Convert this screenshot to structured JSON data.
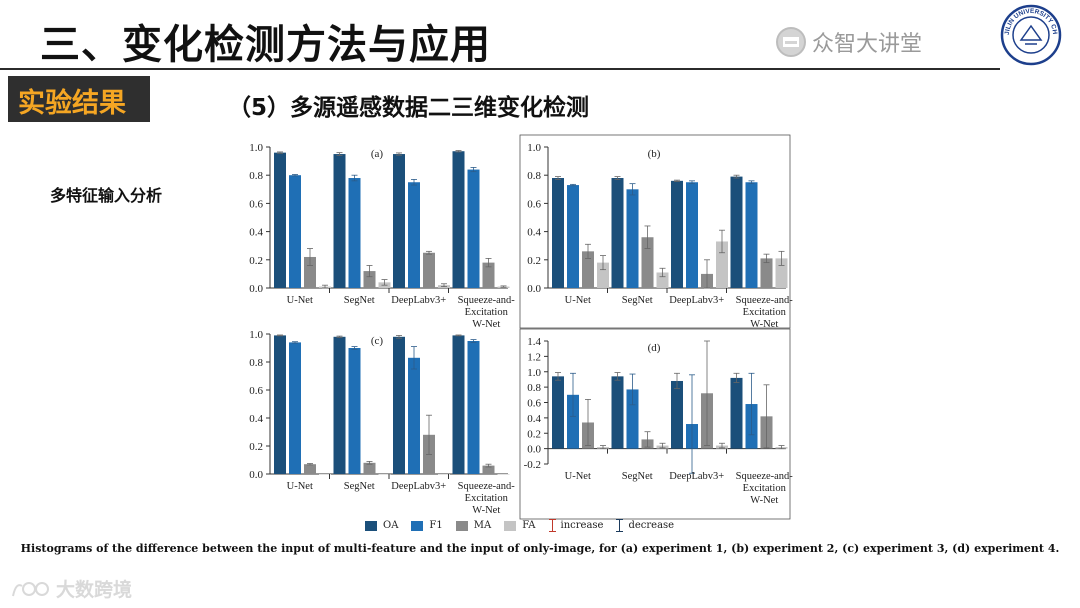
{
  "header": {
    "title": "三、变化检测方法与应用",
    "brand": "众智大讲堂",
    "seal_text": "JILIN UNIVERSITY CHINA"
  },
  "section": {
    "badge": "实验结果",
    "subtitle": "（5）多源遥感数据二三维变化检测",
    "side_label": "多特征输入分析"
  },
  "colors": {
    "OA": "#1b4f7a",
    "F1": "#1f6fb5",
    "MA": "#8a8a8a",
    "FA": "#c4c4c4",
    "increase": "#c0392b",
    "decrease": "#1b3a5c"
  },
  "legend": {
    "OA": "OA",
    "F1": "F1",
    "MA": "MA",
    "FA": "FA",
    "increase": "increase",
    "decrease": "decrease"
  },
  "caption": "Histograms of the difference between the input of multi-feature and the input of only-image, for (a) experiment 1, (b) experiment 2, (c) experiment 3, (d) experiment 4.",
  "watermark": "大数跨境",
  "chart_data": [
    {
      "type": "bar",
      "label": "(a)",
      "categories": [
        "U-Net",
        "SegNet",
        "DeepLabv3+",
        "Squeeze-and-Excitation W-Net"
      ],
      "category_lines": [
        [
          "U-Net"
        ],
        [
          "SegNet"
        ],
        [
          "DeepLabv3+"
        ],
        [
          "Squeeze-and-",
          "Excitation",
          "W-Net"
        ]
      ],
      "ylim": [
        0,
        1.0
      ],
      "yticks": [
        "0.0",
        "0.2",
        "0.4",
        "0.6",
        "0.8",
        "1.0"
      ],
      "series": [
        {
          "name": "OA",
          "values": [
            0.96,
            0.95,
            0.95,
            0.97
          ],
          "errors": [
            0.005,
            0.01,
            0.008,
            0.005
          ]
        },
        {
          "name": "F1",
          "values": [
            0.8,
            0.78,
            0.75,
            0.84
          ],
          "errors": [
            0.005,
            0.02,
            0.02,
            0.015
          ]
        },
        {
          "name": "MA",
          "values": [
            0.22,
            0.12,
            0.25,
            0.18
          ],
          "errors": [
            0.06,
            0.04,
            0.01,
            0.03
          ]
        },
        {
          "name": "FA",
          "values": [
            0.01,
            0.04,
            0.02,
            0.01
          ],
          "errors": [
            0.01,
            0.02,
            0.01,
            0.005
          ]
        }
      ]
    },
    {
      "type": "bar",
      "label": "(b)",
      "categories": [
        "U-Net",
        "SegNet",
        "DeepLabv3+",
        "Squeeze-and-Excitation W-Net"
      ],
      "category_lines": [
        [
          "U-Net"
        ],
        [
          "SegNet"
        ],
        [
          "DeepLabv3+"
        ],
        [
          "Squeeze-and-",
          "Excitation",
          "W-Net"
        ]
      ],
      "ylim": [
        0,
        1.0
      ],
      "yticks": [
        "0.0",
        "0.2",
        "0.4",
        "0.6",
        "0.8",
        "1.0"
      ],
      "series": [
        {
          "name": "OA",
          "values": [
            0.78,
            0.78,
            0.76,
            0.79
          ],
          "errors": [
            0.01,
            0.01,
            0.005,
            0.01
          ]
        },
        {
          "name": "F1",
          "values": [
            0.73,
            0.7,
            0.75,
            0.75
          ],
          "errors": [
            0.005,
            0.04,
            0.01,
            0.01
          ]
        },
        {
          "name": "MA",
          "values": [
            0.26,
            0.36,
            0.1,
            0.21
          ],
          "errors": [
            0.05,
            0.08,
            0.1,
            0.03
          ]
        },
        {
          "name": "FA",
          "values": [
            0.18,
            0.11,
            0.33,
            0.21
          ],
          "errors": [
            0.05,
            0.03,
            0.08,
            0.05
          ]
        }
      ]
    },
    {
      "type": "bar",
      "label": "(c)",
      "categories": [
        "U-Net",
        "SegNet",
        "DeepLabv3+",
        "Squeeze-and-Excitation W-Net"
      ],
      "category_lines": [
        [
          "U-Net"
        ],
        [
          "SegNet"
        ],
        [
          "DeepLabv3+"
        ],
        [
          "Squeeze-and-",
          "Excitation",
          "W-Net"
        ]
      ],
      "ylim": [
        0,
        1.0
      ],
      "yticks": [
        "0.0",
        "0.2",
        "0.4",
        "0.6",
        "0.8",
        "1.0"
      ],
      "series": [
        {
          "name": "OA",
          "values": [
            0.99,
            0.98,
            0.98,
            0.99
          ],
          "errors": [
            0.003,
            0.005,
            0.01,
            0.003
          ]
        },
        {
          "name": "F1",
          "values": [
            0.94,
            0.9,
            0.83,
            0.95
          ],
          "errors": [
            0.005,
            0.01,
            0.08,
            0.01
          ]
        },
        {
          "name": "MA",
          "values": [
            0.07,
            0.08,
            0.28,
            0.06
          ],
          "errors": [
            0.005,
            0.01,
            0.14,
            0.01
          ]
        },
        {
          "name": "FA",
          "values": [
            0.0,
            0.0,
            0.0,
            0.0
          ],
          "errors": [
            0,
            0,
            0,
            0
          ]
        }
      ]
    },
    {
      "type": "bar",
      "label": "(d)",
      "categories": [
        "U-Net",
        "SegNet",
        "DeepLabv3+",
        "Squeeze-and-Excitation W-Net"
      ],
      "category_lines": [
        [
          "U-Net"
        ],
        [
          "SegNet"
        ],
        [
          "DeepLabv3+"
        ],
        [
          "Squeeze-and-",
          "Excitation",
          "W-Net"
        ]
      ],
      "ylim": [
        -0.2,
        1.4
      ],
      "yticks": [
        "-0.2",
        "0.0",
        "0.2",
        "0.4",
        "0.6",
        "0.8",
        "1.0",
        "1.2",
        "1.4"
      ],
      "series": [
        {
          "name": "OA",
          "values": [
            0.94,
            0.94,
            0.88,
            0.92
          ],
          "errors": [
            0.05,
            0.05,
            0.1,
            0.06
          ]
        },
        {
          "name": "F1",
          "values": [
            0.7,
            0.77,
            0.32,
            0.58
          ],
          "errors": [
            0.28,
            0.2,
            0.64,
            0.4
          ]
        },
        {
          "name": "MA",
          "values": [
            0.34,
            0.12,
            0.72,
            0.42
          ],
          "errors": [
            0.3,
            0.1,
            0.68,
            0.41
          ]
        },
        {
          "name": "FA",
          "values": [
            0.02,
            0.04,
            0.04,
            0.02
          ],
          "errors": [
            0.02,
            0.03,
            0.03,
            0.02
          ]
        }
      ]
    }
  ]
}
